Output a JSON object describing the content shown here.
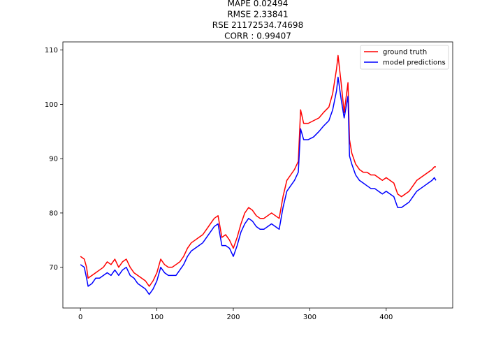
{
  "chart_data": {
    "type": "line",
    "title_lines": [
      "MAPE 0.02494",
      "RMSE 2.33841",
      "RSE 21172534.74698",
      "CORR : 0.99407"
    ],
    "xlabel": "",
    "ylabel": "",
    "xlim": [
      -23,
      487
    ],
    "ylim": [
      62.5,
      111.5
    ],
    "xticks": [
      0,
      100,
      200,
      300,
      400
    ],
    "yticks": [
      70,
      80,
      90,
      100,
      110
    ],
    "grid": false,
    "legend": "top-right",
    "series": [
      {
        "name": "ground truth",
        "color": "#ff0000",
        "points": [
          [
            0,
            72.0
          ],
          [
            5,
            71.5
          ],
          [
            8,
            70.0
          ],
          [
            10,
            68.0
          ],
          [
            15,
            68.5
          ],
          [
            20,
            69.0
          ],
          [
            25,
            69.5
          ],
          [
            30,
            70.0
          ],
          [
            35,
            71.0
          ],
          [
            40,
            70.5
          ],
          [
            45,
            71.5
          ],
          [
            50,
            70.0
          ],
          [
            55,
            71.0
          ],
          [
            60,
            71.5
          ],
          [
            65,
            70.0
          ],
          [
            70,
            69.0
          ],
          [
            75,
            68.5
          ],
          [
            80,
            68.0
          ],
          [
            85,
            67.5
          ],
          [
            90,
            66.5
          ],
          [
            95,
            67.5
          ],
          [
            100,
            69.0
          ],
          [
            105,
            71.5
          ],
          [
            110,
            70.5
          ],
          [
            115,
            70.0
          ],
          [
            120,
            70.0
          ],
          [
            125,
            70.5
          ],
          [
            130,
            71.0
          ],
          [
            135,
            72.0
          ],
          [
            140,
            73.5
          ],
          [
            145,
            74.5
          ],
          [
            150,
            75.0
          ],
          [
            155,
            75.5
          ],
          [
            160,
            76.0
          ],
          [
            165,
            77.0
          ],
          [
            170,
            78.0
          ],
          [
            175,
            79.0
          ],
          [
            180,
            79.5
          ],
          [
            185,
            75.5
          ],
          [
            190,
            76.0
          ],
          [
            195,
            75.0
          ],
          [
            200,
            73.5
          ],
          [
            205,
            75.5
          ],
          [
            210,
            78.0
          ],
          [
            215,
            80.0
          ],
          [
            220,
            81.0
          ],
          [
            225,
            80.5
          ],
          [
            230,
            79.5
          ],
          [
            235,
            79.0
          ],
          [
            240,
            79.0
          ],
          [
            245,
            79.5
          ],
          [
            250,
            80.0
          ],
          [
            255,
            79.5
          ],
          [
            260,
            79.0
          ],
          [
            265,
            83.0
          ],
          [
            270,
            86.0
          ],
          [
            275,
            87.0
          ],
          [
            280,
            88.0
          ],
          [
            285,
            89.5
          ],
          [
            288,
            99.0
          ],
          [
            292,
            96.5
          ],
          [
            298,
            96.5
          ],
          [
            305,
            97.0
          ],
          [
            312,
            97.5
          ],
          [
            318,
            98.5
          ],
          [
            325,
            99.5
          ],
          [
            330,
            102.0
          ],
          [
            335,
            106.5
          ],
          [
            337,
            109.0
          ],
          [
            341,
            104.0
          ],
          [
            345,
            98.5
          ],
          [
            350,
            104.0
          ],
          [
            352,
            93.5
          ],
          [
            355,
            91.0
          ],
          [
            360,
            89.0
          ],
          [
            365,
            88.0
          ],
          [
            370,
            87.5
          ],
          [
            375,
            87.5
          ],
          [
            380,
            87.0
          ],
          [
            385,
            87.0
          ],
          [
            390,
            86.5
          ],
          [
            395,
            86.0
          ],
          [
            400,
            86.5
          ],
          [
            405,
            86.0
          ],
          [
            410,
            85.5
          ],
          [
            415,
            83.5
          ],
          [
            420,
            83.0
          ],
          [
            425,
            83.5
          ],
          [
            430,
            84.0
          ],
          [
            435,
            85.0
          ],
          [
            440,
            86.0
          ],
          [
            445,
            86.5
          ],
          [
            450,
            87.0
          ],
          [
            455,
            87.5
          ],
          [
            460,
            88.0
          ],
          [
            463,
            88.5
          ],
          [
            465,
            88.5
          ]
        ]
      },
      {
        "name": "model predictions",
        "color": "#0000ff",
        "points": [
          [
            0,
            70.5
          ],
          [
            5,
            70.0
          ],
          [
            8,
            68.0
          ],
          [
            10,
            66.5
          ],
          [
            15,
            67.0
          ],
          [
            20,
            68.0
          ],
          [
            25,
            68.0
          ],
          [
            30,
            68.5
          ],
          [
            35,
            69.0
          ],
          [
            40,
            68.5
          ],
          [
            45,
            69.5
          ],
          [
            50,
            68.5
          ],
          [
            55,
            69.5
          ],
          [
            60,
            70.0
          ],
          [
            65,
            68.5
          ],
          [
            70,
            68.0
          ],
          [
            75,
            67.0
          ],
          [
            80,
            66.5
          ],
          [
            85,
            66.0
          ],
          [
            90,
            65.0
          ],
          [
            95,
            66.0
          ],
          [
            100,
            67.5
          ],
          [
            105,
            70.0
          ],
          [
            110,
            69.0
          ],
          [
            115,
            68.5
          ],
          [
            120,
            68.5
          ],
          [
            125,
            68.5
          ],
          [
            130,
            69.5
          ],
          [
            135,
            70.5
          ],
          [
            140,
            72.0
          ],
          [
            145,
            73.0
          ],
          [
            150,
            73.5
          ],
          [
            155,
            74.0
          ],
          [
            160,
            74.5
          ],
          [
            165,
            75.5
          ],
          [
            170,
            76.5
          ],
          [
            175,
            77.5
          ],
          [
            180,
            78.0
          ],
          [
            185,
            74.0
          ],
          [
            190,
            74.0
          ],
          [
            195,
            73.5
          ],
          [
            200,
            72.0
          ],
          [
            205,
            74.0
          ],
          [
            210,
            76.5
          ],
          [
            215,
            78.0
          ],
          [
            220,
            79.0
          ],
          [
            225,
            78.5
          ],
          [
            230,
            77.5
          ],
          [
            235,
            77.0
          ],
          [
            240,
            77.0
          ],
          [
            245,
            77.5
          ],
          [
            250,
            78.0
          ],
          [
            255,
            77.5
          ],
          [
            260,
            77.0
          ],
          [
            265,
            81.0
          ],
          [
            270,
            84.0
          ],
          [
            275,
            85.0
          ],
          [
            280,
            86.0
          ],
          [
            285,
            87.5
          ],
          [
            288,
            95.5
          ],
          [
            292,
            93.5
          ],
          [
            298,
            93.5
          ],
          [
            305,
            94.0
          ],
          [
            312,
            95.0
          ],
          [
            318,
            96.0
          ],
          [
            325,
            97.0
          ],
          [
            330,
            99.0
          ],
          [
            335,
            102.5
          ],
          [
            337,
            105.0
          ],
          [
            341,
            101.0
          ],
          [
            345,
            97.5
          ],
          [
            350,
            101.5
          ],
          [
            352,
            90.5
          ],
          [
            355,
            89.0
          ],
          [
            360,
            87.0
          ],
          [
            365,
            86.0
          ],
          [
            370,
            85.5
          ],
          [
            375,
            85.0
          ],
          [
            380,
            84.5
          ],
          [
            385,
            84.5
          ],
          [
            390,
            84.0
          ],
          [
            395,
            83.5
          ],
          [
            400,
            84.0
          ],
          [
            405,
            83.5
          ],
          [
            410,
            83.0
          ],
          [
            415,
            81.0
          ],
          [
            420,
            81.0
          ],
          [
            425,
            81.5
          ],
          [
            430,
            82.0
          ],
          [
            435,
            83.0
          ],
          [
            440,
            84.0
          ],
          [
            445,
            84.5
          ],
          [
            450,
            85.0
          ],
          [
            455,
            85.5
          ],
          [
            460,
            86.0
          ],
          [
            463,
            86.5
          ],
          [
            465,
            86.0
          ]
        ]
      }
    ]
  }
}
